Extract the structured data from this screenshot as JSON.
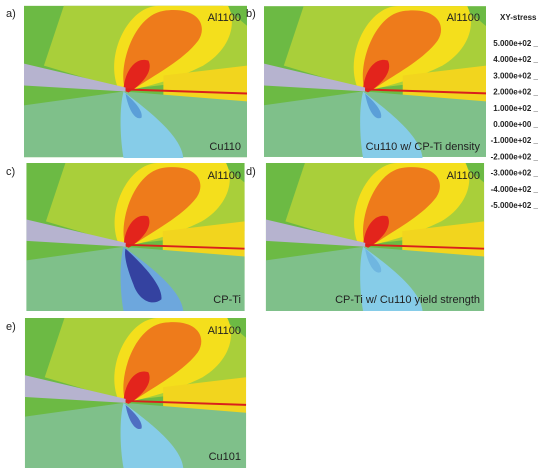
{
  "panels": [
    {
      "letter": "a)",
      "top": "Al1100",
      "bottom": "Cu110"
    },
    {
      "letter": "b)",
      "top": "Al1100",
      "bottom": "Cu110 w/ CP-Ti density"
    },
    {
      "letter": "c)",
      "top": "Al1100",
      "bottom": "CP-Ti"
    },
    {
      "letter": "d)",
      "top": "Al1100",
      "bottom": "CP-Ti w/ Cu110 yield strength"
    },
    {
      "letter": "e)",
      "top": "Al1100",
      "bottom": "Cu101"
    }
  ],
  "legend": {
    "title": "XY-stress",
    "labels": [
      "5.000e+02 _",
      "4.000e+02 _",
      "3.000e+02 _",
      "2.000e+02 _",
      "1.000e+02 _",
      "0.000e+00 _",
      "-1.000e+02 _",
      "-2.000e+02 _",
      "-3.000e+02 _",
      "-4.000e+02 _",
      "-5.000e+02 _"
    ]
  }
}
